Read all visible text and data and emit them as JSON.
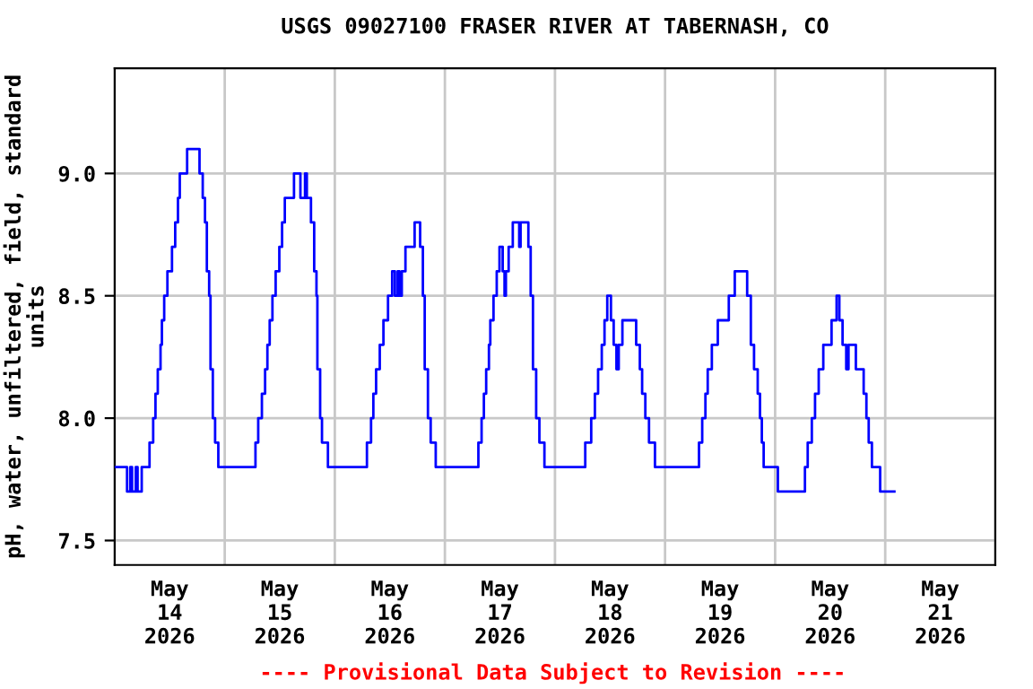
{
  "chart_data": {
    "type": "step",
    "title": "USGS 09027100 FRASER RIVER AT TABERNASH, CO",
    "ylabel": "pH, water, unfiltered, field, standard\nunits",
    "annotations": [
      "---- Provisional Data Subject to Revision ----"
    ],
    "grid": true,
    "legend": false,
    "marker": "none",
    "line_style": "solid",
    "xlim": [
      "2026-05-14T00:00",
      "2026-05-22T00:00"
    ],
    "xticks": [
      {
        "value": "2026-05-14T00:00",
        "label": null
      },
      {
        "value": "2026-05-14T12:00",
        "label": "May\n14\n2026"
      },
      {
        "value": "2026-05-15T00:00",
        "label": null
      },
      {
        "value": "2026-05-15T12:00",
        "label": "May\n15\n2026"
      },
      {
        "value": "2026-05-16T00:00",
        "label": null
      },
      {
        "value": "2026-05-16T12:00",
        "label": "May\n16\n2026"
      },
      {
        "value": "2026-05-17T00:00",
        "label": null
      },
      {
        "value": "2026-05-17T12:00",
        "label": "May\n17\n2026"
      },
      {
        "value": "2026-05-18T00:00",
        "label": null
      },
      {
        "value": "2026-05-18T12:00",
        "label": "May\n18\n2026"
      },
      {
        "value": "2026-05-19T00:00",
        "label": null
      },
      {
        "value": "2026-05-19T12:00",
        "label": "May\n19\n2026"
      },
      {
        "value": "2026-05-20T00:00",
        "label": null
      },
      {
        "value": "2026-05-20T12:00",
        "label": "May\n20\n2026"
      },
      {
        "value": "2026-05-21T00:00",
        "label": null
      },
      {
        "value": "2026-05-21T12:00",
        "label": "May\n21\n2026"
      },
      {
        "value": "2026-05-22T00:00",
        "label": null
      }
    ],
    "ylim": [
      7.4,
      9.43
    ],
    "yticks": [
      {
        "value": 7.5,
        "label": "7.5"
      },
      {
        "value": 8.0,
        "label": "8.0"
      },
      {
        "value": 8.5,
        "label": "8.5"
      },
      {
        "value": 9.0,
        "label": "9.0"
      }
    ],
    "series": [
      {
        "color": "#0000ff",
        "x": [
          "2026-05-14T00:00",
          "2026-05-14T02:42",
          "2026-05-14T03:24",
          "2026-05-14T03:48",
          "2026-05-14T04:36",
          "2026-05-14T05:00",
          "2026-05-14T05:54",
          "2026-05-14T07:36",
          "2026-05-14T08:24",
          "2026-05-14T08:54",
          "2026-05-14T09:24",
          "2026-05-14T10:00",
          "2026-05-14T10:18",
          "2026-05-14T10:48",
          "2026-05-14T11:30",
          "2026-05-14T12:30",
          "2026-05-14T13:12",
          "2026-05-14T13:48",
          "2026-05-14T14:12",
          "2026-05-14T15:48",
          "2026-05-14T18:30",
          "2026-05-14T19:12",
          "2026-05-14T19:42",
          "2026-05-14T20:06",
          "2026-05-14T20:36",
          "2026-05-14T20:54",
          "2026-05-14T21:24",
          "2026-05-14T21:54",
          "2026-05-14T22:36",
          "2026-05-15T06:42",
          "2026-05-15T07:18",
          "2026-05-15T08:06",
          "2026-05-15T08:48",
          "2026-05-15T09:18",
          "2026-05-15T09:48",
          "2026-05-15T10:24",
          "2026-05-15T11:06",
          "2026-05-15T11:54",
          "2026-05-15T12:30",
          "2026-05-15T13:06",
          "2026-05-15T15:06",
          "2026-05-15T16:30",
          "2026-05-15T17:30",
          "2026-05-15T17:54",
          "2026-05-15T18:48",
          "2026-05-15T19:30",
          "2026-05-15T20:00",
          "2026-05-15T20:12",
          "2026-05-15T20:48",
          "2026-05-15T21:12",
          "2026-05-15T22:30",
          "2026-05-16T07:00",
          "2026-05-16T07:54",
          "2026-05-16T08:24",
          "2026-05-16T09:00",
          "2026-05-16T09:48",
          "2026-05-16T10:36",
          "2026-05-16T11:36",
          "2026-05-16T12:30",
          "2026-05-16T13:06",
          "2026-05-16T13:42",
          "2026-05-16T14:06",
          "2026-05-16T14:36",
          "2026-05-16T15:24",
          "2026-05-16T17:24",
          "2026-05-16T18:36",
          "2026-05-16T19:12",
          "2026-05-16T19:36",
          "2026-05-16T20:18",
          "2026-05-16T20:54",
          "2026-05-16T22:00",
          "2026-05-17T07:18",
          "2026-05-17T08:00",
          "2026-05-17T08:30",
          "2026-05-17T09:00",
          "2026-05-17T09:36",
          "2026-05-17T09:54",
          "2026-05-17T10:36",
          "2026-05-17T11:18",
          "2026-05-17T11:54",
          "2026-05-17T12:36",
          "2026-05-17T13:00",
          "2026-05-17T13:18",
          "2026-05-17T13:54",
          "2026-05-17T14:48",
          "2026-05-17T16:12",
          "2026-05-17T16:30",
          "2026-05-17T18:12",
          "2026-05-17T18:42",
          "2026-05-17T19:12",
          "2026-05-17T19:54",
          "2026-05-17T20:36",
          "2026-05-17T21:42",
          "2026-05-18T06:36",
          "2026-05-18T07:54",
          "2026-05-18T08:42",
          "2026-05-18T09:24",
          "2026-05-18T10:12",
          "2026-05-18T10:48",
          "2026-05-18T11:24",
          "2026-05-18T12:12",
          "2026-05-18T12:48",
          "2026-05-18T13:24",
          "2026-05-18T13:54",
          "2026-05-18T14:42",
          "2026-05-18T17:42",
          "2026-05-18T18:30",
          "2026-05-18T19:00",
          "2026-05-18T19:42",
          "2026-05-18T20:30",
          "2026-05-18T21:48",
          "2026-05-19T07:24",
          "2026-05-19T08:06",
          "2026-05-19T08:48",
          "2026-05-19T09:18",
          "2026-05-19T10:12",
          "2026-05-19T11:30",
          "2026-05-19T13:54",
          "2026-05-19T15:12",
          "2026-05-19T17:54",
          "2026-05-19T18:42",
          "2026-05-19T19:24",
          "2026-05-19T20:12",
          "2026-05-19T20:42",
          "2026-05-19T21:06",
          "2026-05-19T21:30",
          "2026-05-20T00:36",
          "2026-05-20T06:30",
          "2026-05-20T07:06",
          "2026-05-20T08:00",
          "2026-05-20T08:42",
          "2026-05-20T09:30",
          "2026-05-20T10:30",
          "2026-05-20T12:18",
          "2026-05-20T13:24",
          "2026-05-20T14:00",
          "2026-05-20T14:42",
          "2026-05-20T15:30",
          "2026-05-20T16:00",
          "2026-05-20T17:36",
          "2026-05-20T19:18",
          "2026-05-20T19:54",
          "2026-05-20T20:24",
          "2026-05-20T21:06",
          "2026-05-20T22:54",
          "2026-05-21T02:00"
        ],
        "values": [
          7.8,
          7.7,
          7.8,
          7.7,
          7.8,
          7.7,
          7.8,
          7.9,
          8.0,
          8.1,
          8.2,
          8.3,
          8.4,
          8.5,
          8.6,
          8.7,
          8.8,
          8.9,
          9.0,
          9.1,
          9.0,
          8.9,
          8.8,
          8.6,
          8.5,
          8.2,
          8.0,
          7.9,
          7.8,
          7.9,
          8.0,
          8.1,
          8.2,
          8.3,
          8.4,
          8.5,
          8.6,
          8.7,
          8.8,
          8.9,
          9.0,
          8.9,
          9.0,
          8.9,
          8.8,
          8.6,
          8.5,
          8.2,
          8.0,
          7.9,
          7.8,
          7.9,
          8.0,
          8.1,
          8.2,
          8.3,
          8.4,
          8.5,
          8.6,
          8.5,
          8.6,
          8.5,
          8.6,
          8.7,
          8.8,
          8.7,
          8.5,
          8.2,
          8.0,
          7.9,
          7.8,
          7.9,
          8.0,
          8.1,
          8.2,
          8.3,
          8.4,
          8.5,
          8.6,
          8.7,
          8.6,
          8.5,
          8.6,
          8.7,
          8.8,
          8.7,
          8.8,
          8.7,
          8.5,
          8.2,
          8.0,
          7.9,
          7.8,
          7.9,
          8.0,
          8.1,
          8.2,
          8.3,
          8.4,
          8.5,
          8.4,
          8.3,
          8.2,
          8.3,
          8.4,
          8.3,
          8.2,
          8.1,
          8.0,
          7.9,
          7.8,
          7.9,
          8.0,
          8.1,
          8.2,
          8.3,
          8.4,
          8.5,
          8.6,
          8.5,
          8.3,
          8.2,
          8.1,
          8.0,
          7.9,
          7.8,
          7.7,
          7.8,
          7.9,
          8.0,
          8.1,
          8.2,
          8.3,
          8.4,
          8.5,
          8.4,
          8.3,
          8.2,
          8.3,
          8.2,
          8.1,
          8.0,
          7.9,
          7.8,
          7.7,
          7.7
        ]
      }
    ]
  }
}
